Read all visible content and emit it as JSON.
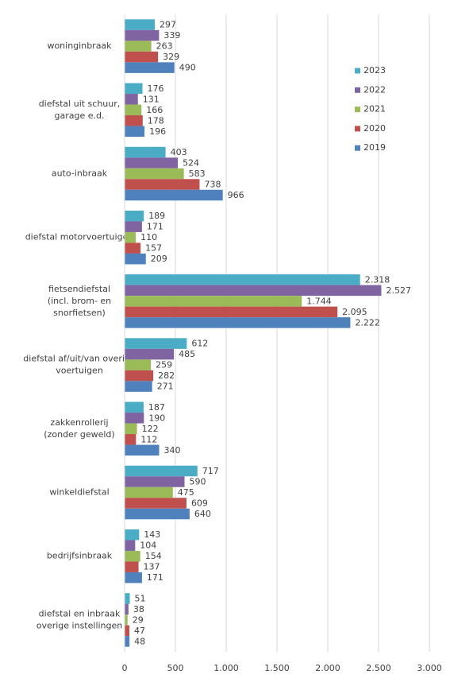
{
  "chart_data": {
    "type": "bar",
    "orientation": "horizontal",
    "categories": [
      [
        "woninginbraak"
      ],
      [
        "diefstal uit schuur,",
        "garage e.d."
      ],
      [
        "auto-inbraak"
      ],
      [
        "diefstal motorvoertuigen"
      ],
      [
        "fietsendiefstal",
        "(incl. brom- en",
        "snorfietsen)"
      ],
      [
        "diefstal af/uit/van overige",
        "voertuigen"
      ],
      [
        "zakkenrollerij",
        "(zonder geweld)"
      ],
      [
        "winkeldiefstal"
      ],
      [
        "bedrijfsinbraak"
      ],
      [
        "diefstal en inbraak",
        "overige instellingen"
      ]
    ],
    "series": [
      {
        "name": "2023",
        "color": "#4bacc6",
        "values": [
          297,
          176,
          403,
          189,
          2318,
          612,
          187,
          717,
          143,
          51
        ],
        "value_labels": [
          "297",
          "176",
          "403",
          "189",
          "2.318",
          "612",
          "187",
          "717",
          "143",
          "51"
        ]
      },
      {
        "name": "2022",
        "color": "#8064a2",
        "values": [
          339,
          131,
          524,
          171,
          2527,
          485,
          190,
          590,
          104,
          38
        ],
        "value_labels": [
          "339",
          "131",
          "524",
          "171",
          "2.527",
          "485",
          "190",
          "590",
          "104",
          "38"
        ]
      },
      {
        "name": "2021",
        "color": "#9bbb59",
        "values": [
          263,
          166,
          583,
          110,
          1744,
          259,
          122,
          475,
          154,
          29
        ],
        "value_labels": [
          "263",
          "166",
          "583",
          "110",
          "1.744",
          "259",
          "122",
          "475",
          "154",
          "29"
        ]
      },
      {
        "name": "2020",
        "color": "#c0504d",
        "values": [
          329,
          178,
          738,
          157,
          2095,
          282,
          112,
          609,
          137,
          47
        ],
        "value_labels": [
          "329",
          "178",
          "738",
          "157",
          "2.095",
          "282",
          "112",
          "609",
          "137",
          "47"
        ]
      },
      {
        "name": "2019",
        "color": "#4f81bd",
        "values": [
          490,
          196,
          966,
          209,
          2222,
          271,
          340,
          640,
          171,
          48
        ],
        "value_labels": [
          "490",
          "196",
          "966",
          "209",
          "2.222",
          "271",
          "340",
          "640",
          "171",
          "48"
        ]
      }
    ],
    "xlim": [
      0,
      3000
    ],
    "xticks": [
      0,
      500,
      {
        "value": 1000,
        "label": "1.000"
      },
      {
        "value": 1500,
        "label": "1.500"
      },
      {
        "value": 2000,
        "label": "2.000"
      },
      {
        "value": 2500,
        "label": "2.500"
      },
      {
        "value": 3000,
        "label": "3.000"
      }
    ],
    "grid": true,
    "legend": "right"
  }
}
